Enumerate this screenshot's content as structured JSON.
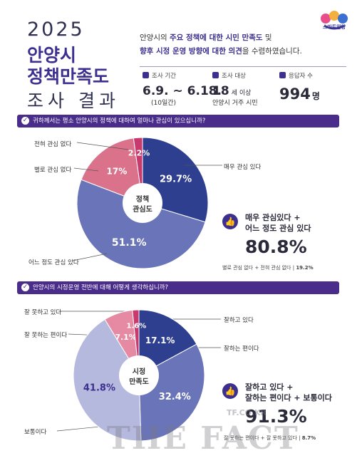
{
  "header": {
    "logo_text": "스마트안양",
    "title_year": "2025",
    "title_line2": "안양시",
    "title_line3": "정책만족도",
    "title_line4": "조사 결과",
    "intro_a": "안양시의 ",
    "intro_b": "주요 정책에 대한 시민 만족도",
    "intro_c": " 및",
    "intro_d": "향후 시정 운영 방향에 대한 의견",
    "intro_e": "을 수렴하였습니다."
  },
  "info": {
    "period_label": "조사 기간",
    "period_value": "6.9. ~ 6.18.",
    "period_sub": "(10일간)",
    "target_label": "조사 대상",
    "target_value": "18",
    "target_value_suffix": "세 이상",
    "target_sub": "안양시 거주 시민",
    "resp_label": "응답자 수",
    "resp_value": "994",
    "resp_suffix": "명"
  },
  "q1": {
    "question": "귀하께서는 평소 안양시의 정책에 대하여 얼마나 관심이 있으십니까?",
    "center_l1": "정책",
    "center_l2": "관심도",
    "summary_l1": "매우 관심있다 +",
    "summary_l2": "어느 정도 관심 있다",
    "summary_value": "80.8%",
    "note": "별로 관심 없다 + 전혀 관심 없다",
    "note_value": "19.2%"
  },
  "q2": {
    "question": "안양시의 시정운영 전반에 대해 어떻게 생각하십니까?",
    "center_l1": "시정",
    "center_l2": "만족도",
    "summary_l1": "잘하고 있다 +",
    "summary_l2": "잘하는 편이다 + 보통이다",
    "summary_value": "91.3%",
    "note": "잘 못하는 편이다 + 잘 못하고 있다",
    "note_value": "8.7%"
  },
  "watermark": {
    "large": "THE FACT",
    "small": "TF.CO.KR"
  },
  "chart_data": [
    {
      "type": "pie",
      "title": "",
      "categories": [
        "매우 관심 있다",
        "어느 정도 관심 있다",
        "별로 관심 없다",
        "전혀 관심 없다"
      ],
      "values": [
        29.7,
        51.1,
        17.0,
        2.2
      ],
      "labels": [
        "29.7%",
        "51.1%",
        "17%",
        "2.2%"
      ],
      "colors": [
        "#2e3f8f",
        "#6a74b8",
        "#d9728a",
        "#c83a6e"
      ]
    },
    {
      "type": "pie",
      "title": "",
      "categories": [
        "잘하고 있다",
        "잘하는 편이다",
        "보통이다",
        "잘 못하는 편이다",
        "잘 못하고 있다"
      ],
      "values": [
        17.1,
        32.4,
        41.8,
        7.1,
        1.6
      ],
      "labels": [
        "17.1%",
        "32.4%",
        "41.8%",
        "7.1%",
        "1.6%"
      ],
      "colors": [
        "#2e3f8f",
        "#6a74b8",
        "#b6b9de",
        "#e58aa2",
        "#c83a6e"
      ]
    }
  ]
}
